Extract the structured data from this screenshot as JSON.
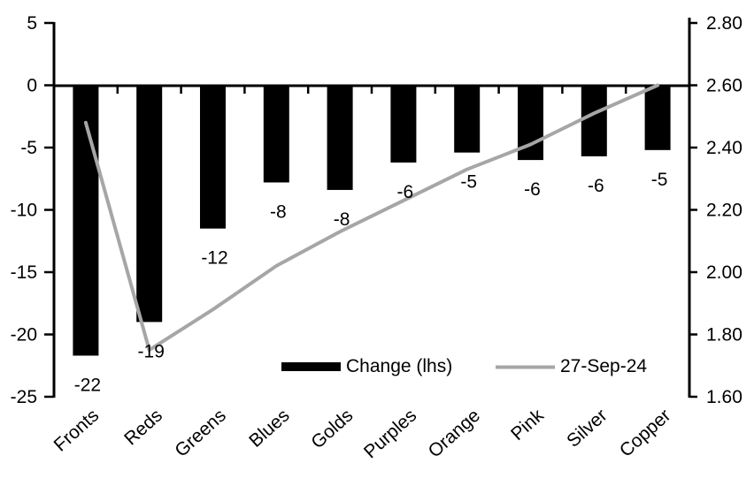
{
  "chart_data": {
    "type": "combo",
    "title": "",
    "xlabel": "",
    "ylabel_left": "",
    "ylabel_right": "",
    "grid": "off",
    "legend_position": "bottom-inside",
    "background_color": "#ffffff",
    "categories": [
      "Fronts",
      "Reds",
      "Greens",
      "Blues",
      "Golds",
      "Purples",
      "Orange",
      "Pink",
      "Silver",
      "Copper"
    ],
    "series": [
      {
        "name": "Change (lhs)",
        "type": "bar",
        "axis": "left",
        "color": "#000000",
        "values": [
          -21.7,
          -19.0,
          -11.5,
          -7.8,
          -8.4,
          -6.2,
          -5.4,
          -6.0,
          -5.7,
          -5.2
        ],
        "data_labels": [
          "-22",
          "-19",
          "-12",
          "-8",
          "-8",
          "-6",
          "-5",
          "-6",
          "-6",
          "-5"
        ]
      },
      {
        "name": "27-Sep-24",
        "type": "line",
        "axis": "right",
        "color": "#a6a6a6",
        "values": [
          2.48,
          1.75,
          1.88,
          2.02,
          2.13,
          2.23,
          2.33,
          2.41,
          2.51,
          2.6
        ]
      }
    ],
    "left_axis": {
      "min": -25,
      "max": 5,
      "tick_labels": [
        "5",
        "0",
        "-5",
        "-10",
        "-15",
        "-20",
        "-25"
      ],
      "tick_values": [
        5,
        0,
        -5,
        -10,
        -15,
        -20,
        -25
      ]
    },
    "right_axis": {
      "min": 1.6,
      "max": 2.8,
      "tick_labels": [
        "2.80",
        "2.60",
        "2.40",
        "2.20",
        "2.00",
        "1.80",
        "1.60"
      ],
      "tick_values": [
        2.8,
        2.6,
        2.4,
        2.2,
        2.0,
        1.8,
        1.6
      ]
    },
    "axis_color": "#000000",
    "legend": [
      {
        "label": "Change (lhs)",
        "swatch": "bar",
        "color": "#000000"
      },
      {
        "label": "27-Sep-24",
        "swatch": "line",
        "color": "#a6a6a6"
      }
    ]
  }
}
